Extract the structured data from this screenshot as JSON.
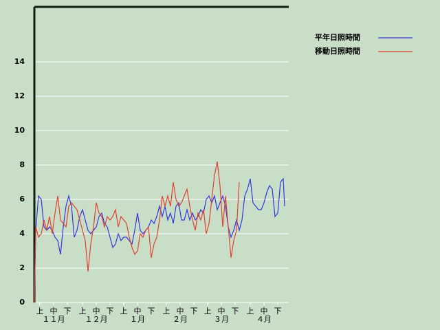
{
  "chart_data": {
    "type": "line",
    "x": [
      0,
      1,
      3,
      5,
      7,
      9,
      11,
      13,
      15,
      17,
      19,
      21,
      23,
      25,
      27,
      29,
      31,
      33,
      35,
      37,
      39,
      41,
      43,
      45,
      47,
      49,
      51,
      53,
      55,
      57,
      59,
      61,
      63,
      65,
      67,
      69,
      71,
      73,
      75,
      77,
      79,
      81,
      83,
      85,
      87,
      89,
      91,
      93,
      95,
      97,
      99,
      101,
      103,
      105,
      107,
      109,
      111,
      113,
      115,
      117,
      119,
      121,
      123,
      125,
      127,
      129,
      131,
      133,
      135,
      137,
      139,
      141,
      143,
      145,
      147,
      149,
      151,
      153,
      155,
      157,
      159,
      161,
      163,
      165,
      167,
      169,
      171,
      173,
      175,
      177,
      179,
      181,
      182
    ],
    "xlim": [
      0,
      185
    ],
    "xticks": [
      {
        "value": 4,
        "label": "上"
      },
      {
        "value": 14,
        "label": "中"
      },
      {
        "value": 24,
        "label": "下"
      },
      {
        "value": 35,
        "label": "上"
      },
      {
        "value": 45,
        "label": "中"
      },
      {
        "value": 55,
        "label": "下"
      },
      {
        "value": 65,
        "label": "上"
      },
      {
        "value": 75,
        "label": "中"
      },
      {
        "value": 85,
        "label": "下"
      },
      {
        "value": 96,
        "label": "上"
      },
      {
        "value": 106,
        "label": "中"
      },
      {
        "value": 116,
        "label": "下"
      },
      {
        "value": 126,
        "label": "上"
      },
      {
        "value": 136,
        "label": "中"
      },
      {
        "value": 146,
        "label": "下"
      },
      {
        "value": 157,
        "label": "上"
      },
      {
        "value": 167,
        "label": "中"
      },
      {
        "value": 177,
        "label": "下"
      }
    ],
    "month_ticks": [
      {
        "value": 14,
        "label": "１１月"
      },
      {
        "value": 45,
        "label": "１２月"
      },
      {
        "value": 75,
        "label": "１月"
      },
      {
        "value": 106,
        "label": "２月"
      },
      {
        "value": 136,
        "label": "３月"
      },
      {
        "value": 167,
        "label": "４月"
      }
    ],
    "ylim": [
      0,
      17.2
    ],
    "yticks": [
      0,
      2,
      4,
      6,
      8,
      10,
      12,
      14
    ],
    "grid": true,
    "legend": "upper right",
    "series": [
      {
        "name": "平年日照時間",
        "color": "#3535e0",
        "values": [
          0,
          4.2,
          6.2,
          6,
          4.4,
          4.2,
          4.4,
          4.2,
          3.8,
          3.6,
          2.8,
          4.4,
          5.6,
          6.2,
          5.6,
          3.8,
          4.2,
          5,
          5.4,
          4.8,
          4.2,
          4,
          4.2,
          4.4,
          5,
          5.2,
          4.6,
          4.4,
          3.8,
          3.2,
          3.4,
          4,
          3.6,
          3.8,
          3.8,
          3.6,
          3.4,
          4.2,
          5.2,
          4.2,
          4,
          4.2,
          4.4,
          4.8,
          4.6,
          5,
          5.6,
          5,
          5.6,
          4.8,
          5.2,
          4.6,
          5.6,
          5.8,
          4.8,
          4.8,
          5.4,
          4.8,
          5.2,
          4.8,
          5,
          5.4,
          5.2,
          6,
          6.2,
          5.8,
          6.2,
          5.4,
          5.8,
          6.2,
          5.6,
          4.4,
          3.8,
          4.2,
          4.8,
          4.2,
          4.8,
          6.2,
          6.6,
          7.2,
          5.8,
          5.6,
          5.4,
          5.4,
          5.8,
          6.4,
          6.8,
          6.6,
          5,
          5.2,
          7,
          7.2,
          5.6
        ]
      },
      {
        "name": "移動日照時間",
        "color": "#e04030",
        "values": [
          0,
          4.4,
          3.8,
          4,
          4.8,
          4.2,
          5,
          4,
          5.2,
          6.2,
          4.8,
          4.6,
          4.4,
          5.6,
          5.8,
          5.6,
          5.4,
          4.8,
          4.2,
          3.6,
          1.8,
          3.4,
          4.4,
          5.8,
          5.2,
          5,
          4.4,
          5,
          4.8,
          5,
          5.4,
          4.4,
          5,
          4.8,
          4.6,
          3.8,
          3.2,
          2.8,
          3,
          4,
          3.8,
          4.2,
          4.4,
          2.6,
          3.4,
          3.8,
          4.8,
          6.2,
          5.6,
          6.2,
          5.6,
          7,
          6,
          5.6,
          5.8,
          6.2,
          6.6,
          5.6,
          4.8,
          4.2,
          5.2,
          4.8,
          5.4,
          4,
          4.6,
          6,
          7.4,
          8.2,
          6.8,
          4.4,
          6.2,
          4.4,
          2.6,
          3.6,
          4.2,
          7,
          null,
          null,
          null,
          null,
          null,
          null,
          null,
          null,
          null,
          null,
          null,
          null,
          null,
          null,
          null,
          null,
          null
        ]
      }
    ]
  }
}
